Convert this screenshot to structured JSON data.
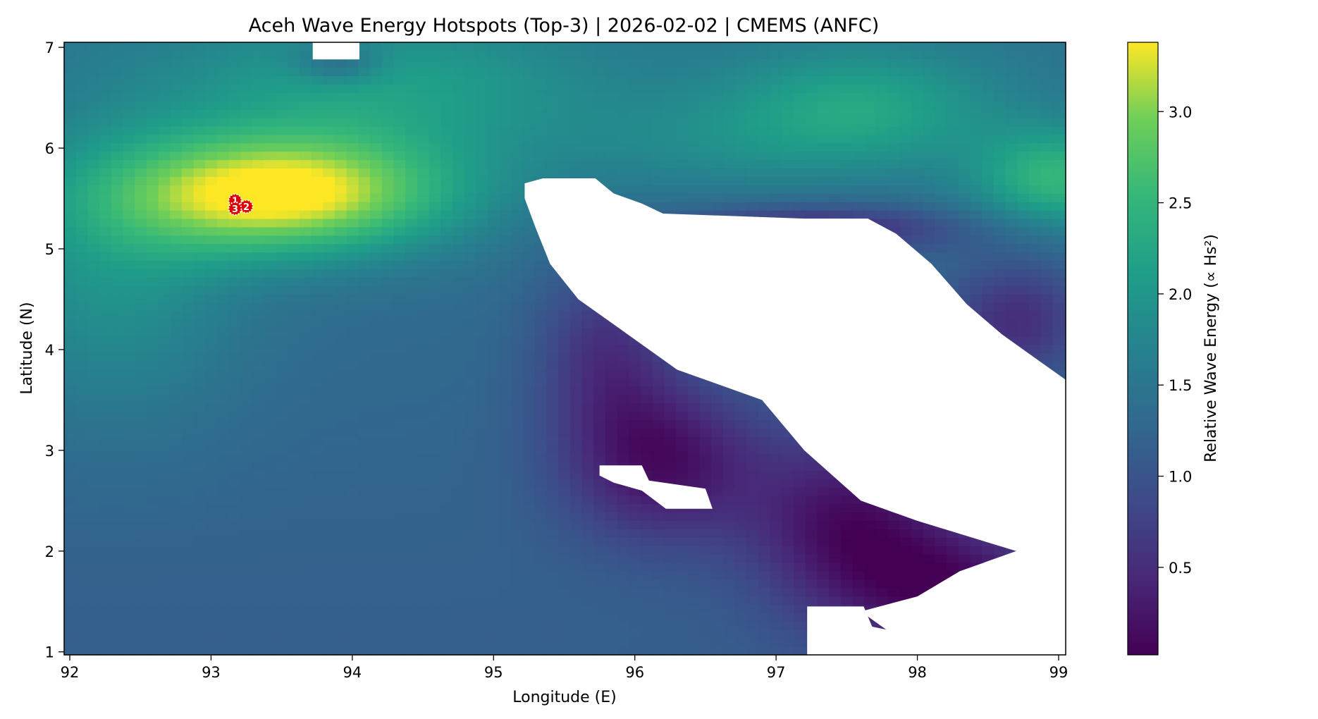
{
  "chart_data": {
    "type": "heatmap",
    "title": "Aceh Wave Energy Hotspots (Top-3) | 2026-02-02 | CMEMS (ANFC)",
    "xlabel": "Longitude (E)",
    "ylabel": "Latitude (N)",
    "xlim": [
      91.96,
      99.05
    ],
    "ylim": [
      0.97,
      7.05
    ],
    "x_ticks": [
      92,
      93,
      94,
      95,
      96,
      97,
      98,
      99
    ],
    "y_ticks": [
      1,
      2,
      3,
      4,
      5,
      6,
      7
    ],
    "colorbar": {
      "label": "Relative Wave Energy (∝ Hs²)",
      "colormap": "viridis",
      "range": [
        0.02,
        3.38
      ],
      "ticks": [
        "0.5",
        "1.0",
        "1.5",
        "2.0",
        "2.5",
        "3.0"
      ],
      "tick_values": [
        0.5,
        1.0,
        1.5,
        2.0,
        2.5,
        3.0
      ]
    },
    "grid_resolution_deg": 0.0833,
    "field_features": [
      {
        "name": "northwest maximum",
        "lon": 93.7,
        "lat": 5.6,
        "value": 3.3
      },
      {
        "name": "northeast secondary maximum",
        "lon": 99.0,
        "lat": 5.7,
        "value": 2.3
      },
      {
        "name": "northeast secondary maximum 2",
        "lon": 97.5,
        "lat": 6.5,
        "value": 2.1
      },
      {
        "name": "Strait of Malacca minimum",
        "lon": 96.2,
        "lat": 2.8,
        "value": 0.05
      }
    ],
    "hotspots": [
      {
        "rank": 1,
        "lon": 93.17,
        "lat": 5.48,
        "label": "1"
      },
      {
        "rank": 2,
        "lon": 93.25,
        "lat": 5.42,
        "label": "2"
      },
      {
        "rank": 3,
        "lon": 93.17,
        "lat": 5.4,
        "label": "3"
      }
    ],
    "colors": {
      "hotspot_marker": "#dd0000",
      "land_mask": "#ffffff"
    }
  }
}
